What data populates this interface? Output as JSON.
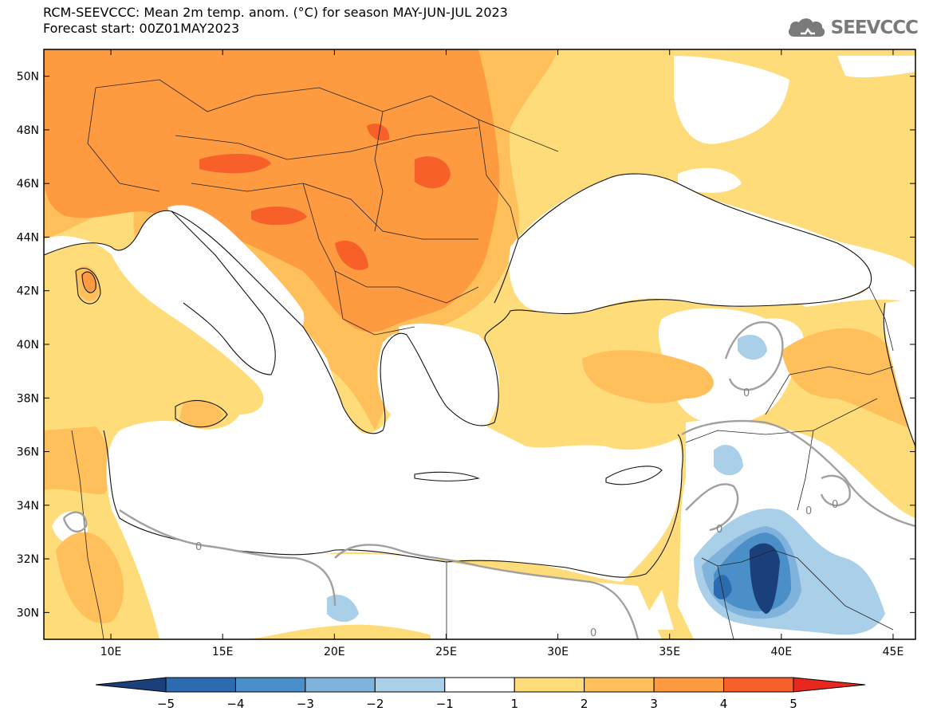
{
  "title": {
    "line1": "RCM-SEEVCCC: Mean 2m temp. anom. (°C) for season MAY-JUN-JUL 2023",
    "line2": "Forecast start: 00Z01MAY2023"
  },
  "logo": {
    "text": "SEEVCCC",
    "icon": "cloud-icon"
  },
  "map": {
    "lon_range": [
      7,
      46
    ],
    "lat_range": [
      29,
      51
    ],
    "lon_ticks": [
      "10E",
      "15E",
      "20E",
      "25E",
      "30E",
      "35E",
      "40E",
      "45E"
    ],
    "lat_ticks": [
      "30N",
      "32N",
      "34N",
      "36N",
      "38N",
      "40N",
      "42N",
      "44N",
      "46N",
      "48N",
      "50N"
    ],
    "contour_label": "0"
  },
  "colorbar": {
    "ticks": [
      "−5",
      "−4",
      "−3",
      "−2",
      "−1",
      "1",
      "2",
      "3",
      "4",
      "5"
    ],
    "colors": [
      "#1a3f7a",
      "#2d6bb0",
      "#4a8fc8",
      "#7fb3dc",
      "#aacfe8",
      "#ffffff",
      "#ffdc7a",
      "#ffbf5a",
      "#fe9a40",
      "#f8602a",
      "#e8281e"
    ]
  }
}
